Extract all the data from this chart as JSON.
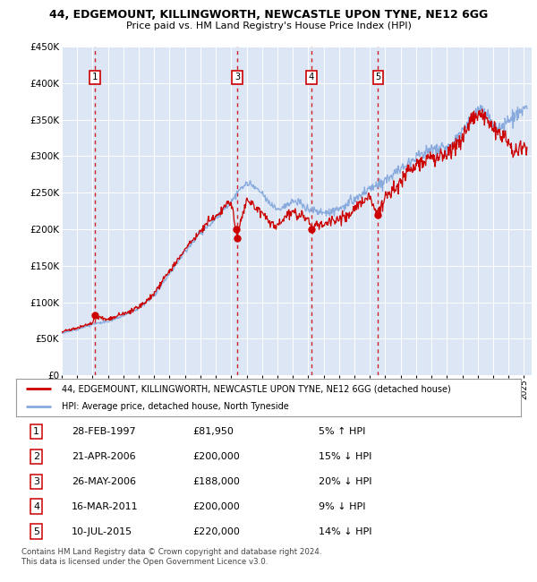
{
  "title1": "44, EDGEMOUNT, KILLINGWORTH, NEWCASTLE UPON TYNE, NE12 6GG",
  "title2": "Price paid vs. HM Land Registry's House Price Index (HPI)",
  "bg_color": "#dce6f5",
  "ylim": [
    0,
    450000
  ],
  "yticks": [
    0,
    50000,
    100000,
    150000,
    200000,
    250000,
    300000,
    350000,
    400000,
    450000
  ],
  "ytick_labels": [
    "£0",
    "£50K",
    "£100K",
    "£150K",
    "£200K",
    "£250K",
    "£300K",
    "£350K",
    "£400K",
    "£450K"
  ],
  "xmin": 1995.0,
  "xmax": 2025.5,
  "xticks": [
    1995,
    1996,
    1997,
    1998,
    1999,
    2000,
    2001,
    2002,
    2003,
    2004,
    2005,
    2006,
    2007,
    2008,
    2009,
    2010,
    2011,
    2012,
    2013,
    2014,
    2015,
    2016,
    2017,
    2018,
    2019,
    2020,
    2021,
    2022,
    2023,
    2024,
    2025
  ],
  "sale_dates": [
    1997.154,
    2006.306,
    2006.393,
    2011.204,
    2015.521
  ],
  "sale_prices": [
    81950,
    200000,
    188000,
    200000,
    220000
  ],
  "sale_labels": [
    "1",
    "2",
    "3",
    "4",
    "5"
  ],
  "vline_dates": [
    1997.154,
    2006.393,
    2011.204,
    2015.521
  ],
  "vline_labels": [
    "1",
    "3",
    "4",
    "5"
  ],
  "sale_color": "#cc0000",
  "hpi_color": "#88aadd",
  "legend_label_red": "44, EDGEMOUNT, KILLINGWORTH, NEWCASTLE UPON TYNE, NE12 6GG (detached house)",
  "legend_label_blue": "HPI: Average price, detached house, North Tyneside",
  "table_data": [
    [
      "1",
      "28-FEB-1997",
      "£81,950",
      "5% ↑ HPI"
    ],
    [
      "2",
      "21-APR-2006",
      "£200,000",
      "15% ↓ HPI"
    ],
    [
      "3",
      "26-MAY-2006",
      "£188,000",
      "20% ↓ HPI"
    ],
    [
      "4",
      "16-MAR-2011",
      "£200,000",
      "9% ↓ HPI"
    ],
    [
      "5",
      "10-JUL-2015",
      "£220,000",
      "14% ↓ HPI"
    ]
  ],
  "footnote": "Contains HM Land Registry data © Crown copyright and database right 2024.\nThis data is licensed under the Open Government Licence v3.0."
}
